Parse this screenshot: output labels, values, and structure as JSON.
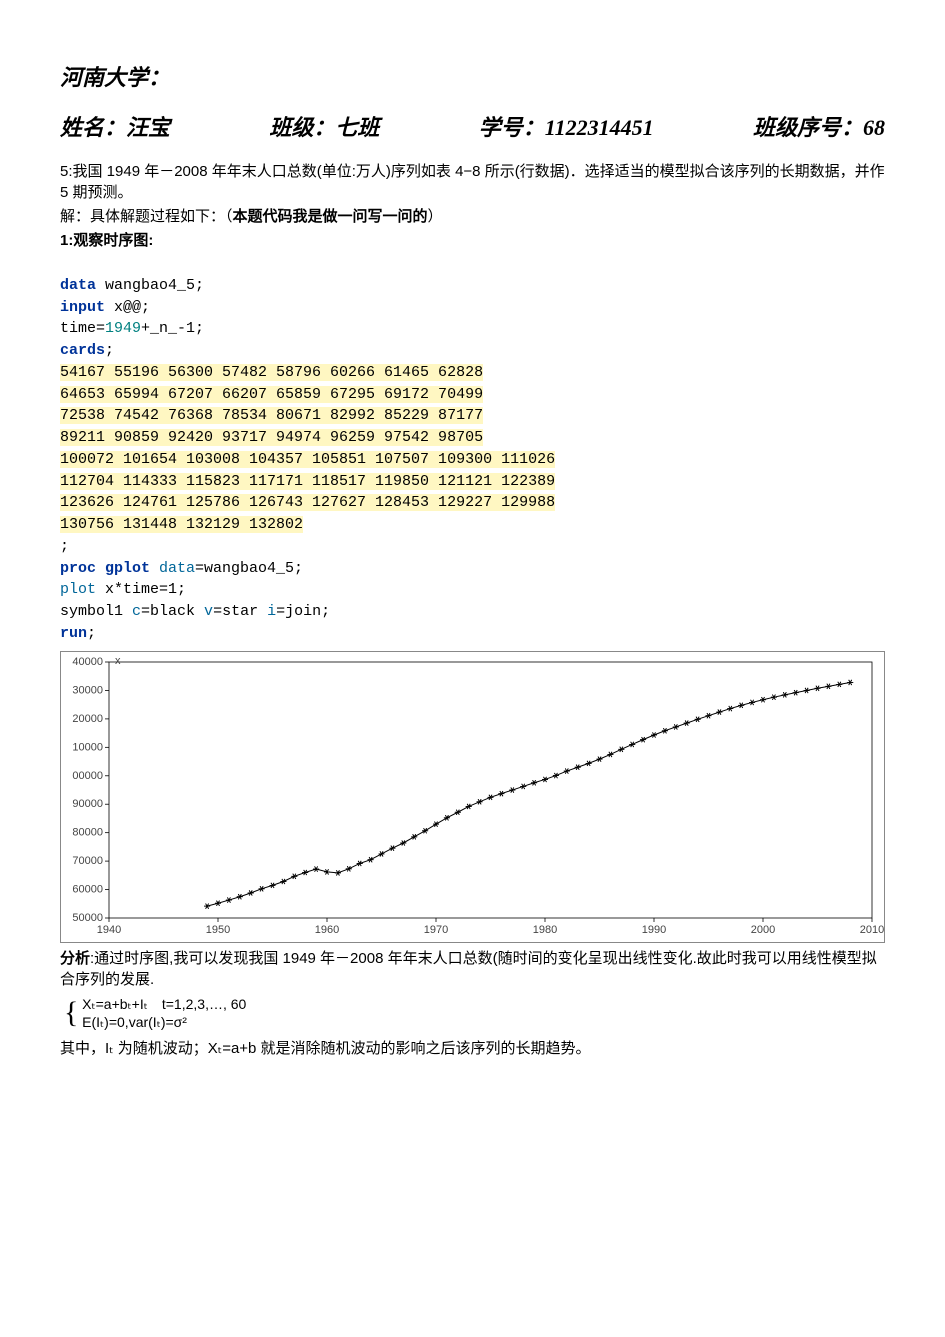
{
  "university": "河南大学：",
  "header": {
    "name_label": "姓名：",
    "name_value": "汪宝",
    "class_label": "班级：",
    "class_value": "七班",
    "id_label": "学号：",
    "id_value": "1122314451",
    "seq_label": "班级序号：",
    "seq_value": "68"
  },
  "problem": "5:我国 1949 年－2008 年年末人口总数(单位:万人)序列如表 4−8 所示(行数据)．选择适当的模型拟合该序列的长期数据，并作 5 期预测。",
  "solution_label": "解：具体解题过程如下：（",
  "solution_note": "本题代码我是做一问写一问的",
  "solution_close": "）",
  "step1_label": "1:观察时序图:",
  "code": {
    "l1_kw": "data",
    "l1_rest": " wangbao4_5;",
    "l2_kw": "input",
    "l2_rest": " x@@;",
    "l3_a": "time=",
    "l3_num": "1949",
    "l3_b": "+_n_-1;",
    "l4_kw": "cards",
    "l4_semi": ";",
    "d1": "54167 55196 56300 57482 58796 60266 61465 62828",
    "d2": "64653 65994 67207 66207 65859 67295 69172 70499",
    "d3": "72538 74542 76368 78534 80671 82992 85229 87177",
    "d4": "89211 90859 92420 93717 94974 96259 97542 98705",
    "d5": "100072 101654 103008 104357 105851 107507 109300 111026",
    "d6": "112704 114333 115823 117171 118517 119850 121121 122389",
    "d7": "123626 124761 125786 126743 127627 128453 129227 129988",
    "d8": "130756 131448 132129 132802",
    "semi": ";",
    "p1_kw": "proc gplot",
    "p1_opt": " data",
    "p1_rest": "=wangbao4_5;",
    "p2_opt": "plot",
    "p2_rest": " x*time=1;",
    "p3_a": "symbol1 ",
    "p3_opt1": "c",
    "p3_b": "=black ",
    "p3_opt2": "v",
    "p3_c": "=star ",
    "p3_opt3": "i",
    "p3_d": "=join;",
    "run_kw": "run",
    "run_semi": ";"
  },
  "chart": {
    "type": "line",
    "ylabel": "x",
    "x_ticks": [
      1940,
      1950,
      1960,
      1970,
      1980,
      1990,
      2000,
      2010
    ],
    "y_ticks": [
      50000,
      60000,
      70000,
      80000,
      90000,
      100000,
      110000,
      120000,
      130000,
      140000
    ],
    "y_tick_labels": [
      "50000",
      "60000",
      "70000",
      "80000",
      "90000",
      "00000",
      "10000",
      "20000",
      "30000",
      "40000"
    ],
    "xlim": [
      1940,
      2010
    ],
    "ylim": [
      50000,
      140000
    ],
    "line_color": "#000000",
    "marker": "star",
    "background": "#ffffff",
    "border_color": "#888888",
    "years": [
      1949,
      1950,
      1951,
      1952,
      1953,
      1954,
      1955,
      1956,
      1957,
      1958,
      1959,
      1960,
      1961,
      1962,
      1963,
      1964,
      1965,
      1966,
      1967,
      1968,
      1969,
      1970,
      1971,
      1972,
      1973,
      1974,
      1975,
      1976,
      1977,
      1978,
      1979,
      1980,
      1981,
      1982,
      1983,
      1984,
      1985,
      1986,
      1987,
      1988,
      1989,
      1990,
      1991,
      1992,
      1993,
      1994,
      1995,
      1996,
      1997,
      1998,
      1999,
      2000,
      2001,
      2002,
      2003,
      2004,
      2005,
      2006,
      2007,
      2008
    ],
    "values": [
      54167,
      55196,
      56300,
      57482,
      58796,
      60266,
      61465,
      62828,
      64653,
      65994,
      67207,
      66207,
      65859,
      67295,
      69172,
      70499,
      72538,
      74542,
      76368,
      78534,
      80671,
      82992,
      85229,
      87177,
      89211,
      90859,
      92420,
      93717,
      94974,
      96259,
      97542,
      98705,
      100072,
      101654,
      103008,
      104357,
      105851,
      107507,
      109300,
      111026,
      112704,
      114333,
      115823,
      117171,
      118517,
      119850,
      121121,
      122389,
      123626,
      124761,
      125786,
      126743,
      127627,
      128453,
      129227,
      129988,
      130756,
      131448,
      132129,
      132802
    ]
  },
  "analysis_label": "分析",
  "analysis_text": ":通过时序图,我可以发现我国 1949 年－2008 年年末人口总数(随时间的变化呈现出线性变化.故此时我可以用线性模型拟合序列的发展.",
  "model": {
    "line1": "Xₜ=a+bₜ+Iₜ　t=1,2,3,…, 60",
    "line2": "E(Iₜ)=0,var(Iₜ)=σ²"
  },
  "footer": "其中，Iₜ 为随机波动；Xₜ=a+b 就是消除随机波动的影响之后该序列的长期趋势。"
}
